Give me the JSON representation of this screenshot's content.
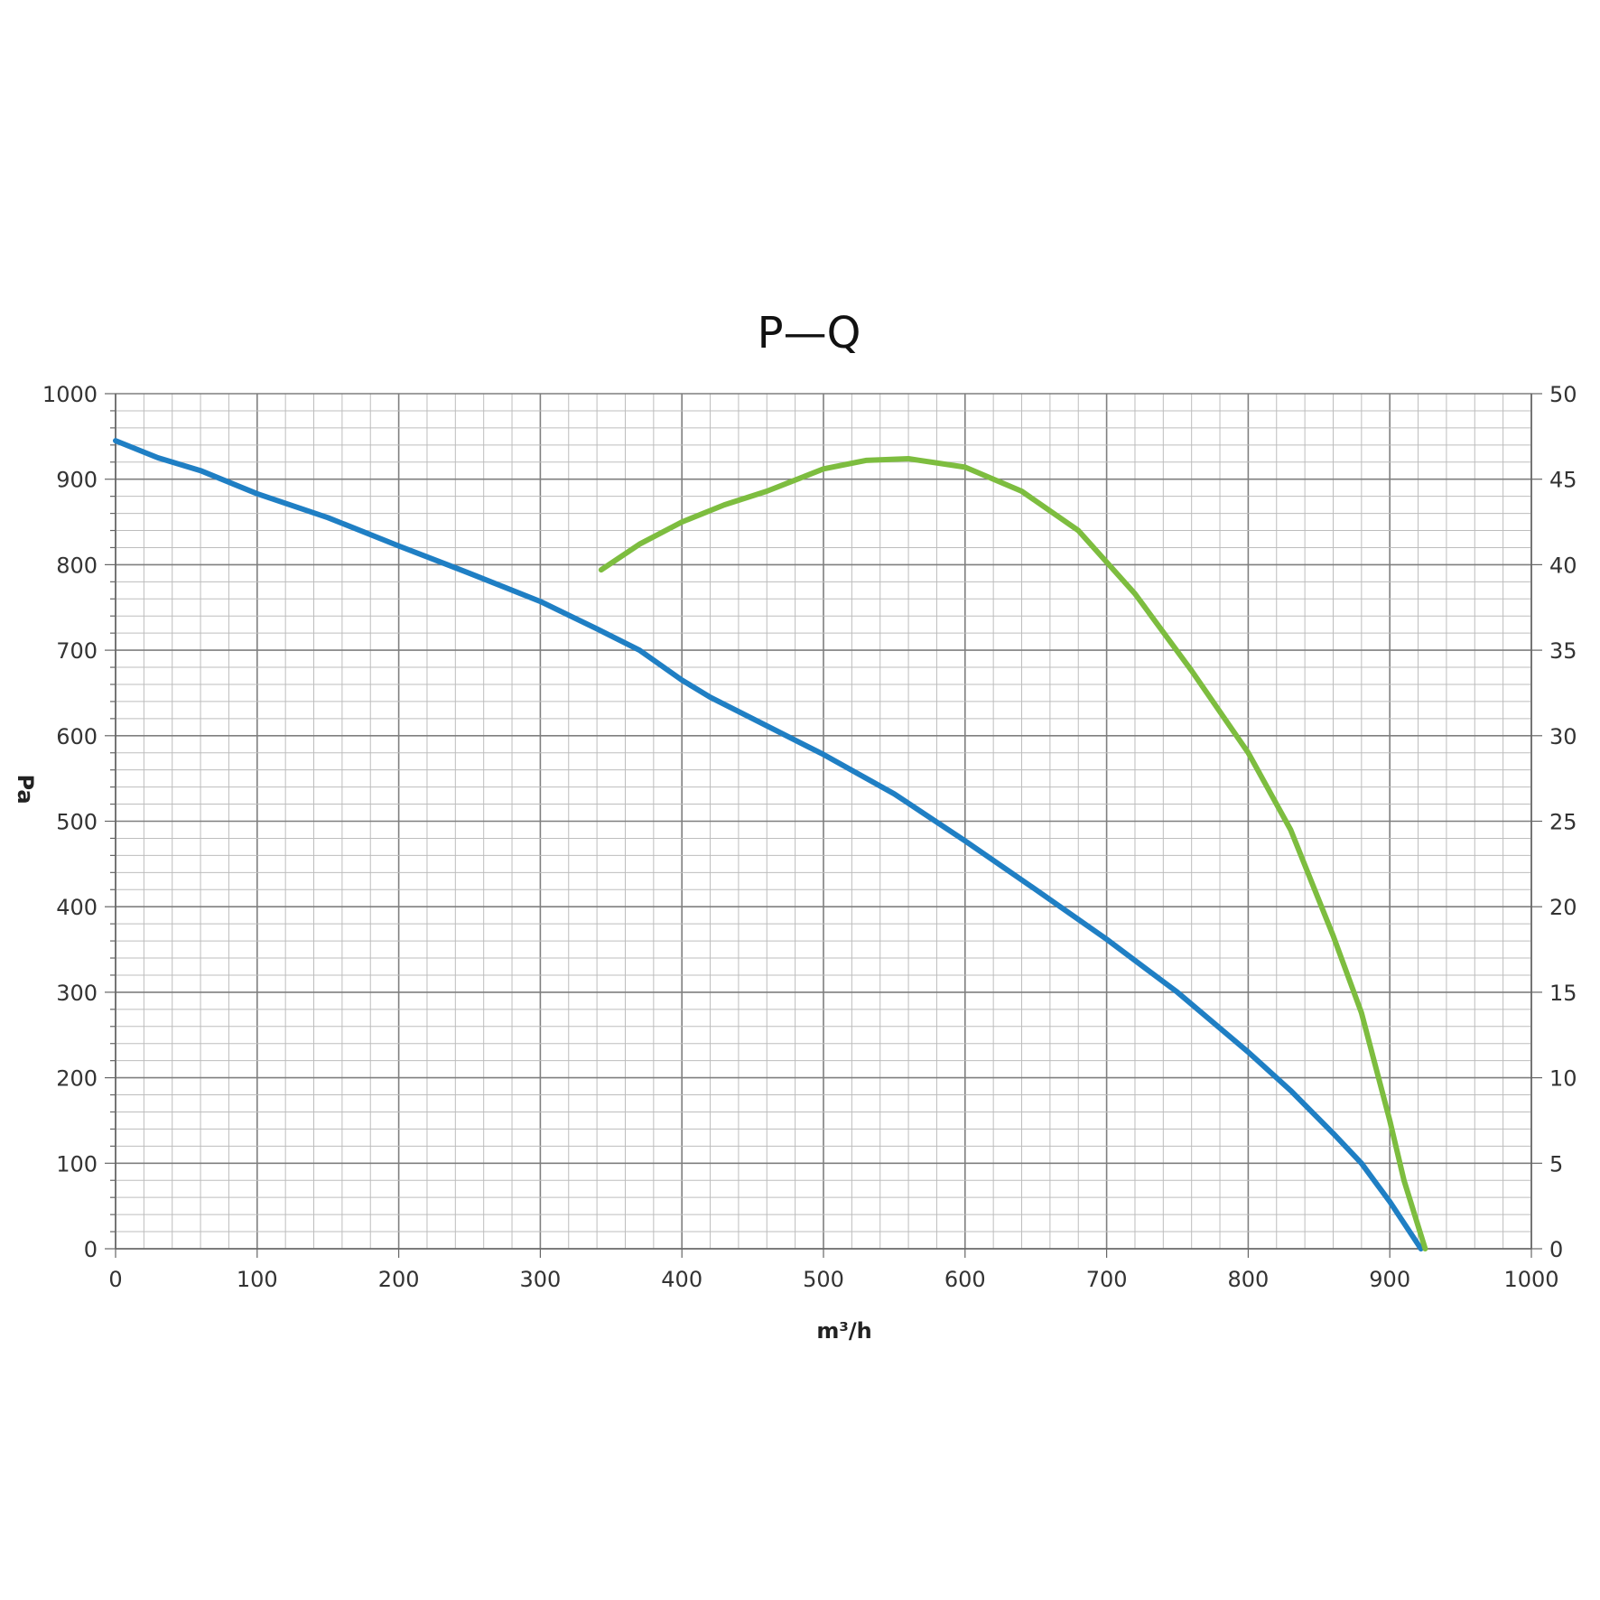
{
  "chart_data": {
    "type": "line",
    "title": "P—Q",
    "xlabel": "m³/h",
    "ylabel": "Pa",
    "y2label": "",
    "xlim": [
      0,
      1000
    ],
    "ylim": [
      0,
      1000
    ],
    "y2lim": [
      0,
      50
    ],
    "x_ticks": [
      "0",
      "100",
      "200",
      "300",
      "400",
      "500",
      "600",
      "700",
      "800",
      "900",
      "1000"
    ],
    "y_ticks": [
      "0",
      "100",
      "200",
      "300",
      "400",
      "500",
      "600",
      "700",
      "800",
      "900",
      "1000"
    ],
    "y2_ticks": [
      "0",
      "5",
      "10",
      "15",
      "20",
      "25",
      "30",
      "35",
      "40",
      "45",
      "50"
    ],
    "grid": true,
    "series": [
      {
        "axis": "left",
        "color": "#1f7fc4",
        "points": [
          [
            0,
            945
          ],
          [
            30,
            925
          ],
          [
            60,
            910
          ],
          [
            100,
            883
          ],
          [
            150,
            855
          ],
          [
            200,
            822
          ],
          [
            250,
            790
          ],
          [
            300,
            757
          ],
          [
            340,
            725
          ],
          [
            370,
            700
          ],
          [
            400,
            665
          ],
          [
            420,
            645
          ],
          [
            450,
            620
          ],
          [
            500,
            578
          ],
          [
            550,
            532
          ],
          [
            600,
            477
          ],
          [
            650,
            420
          ],
          [
            700,
            362
          ],
          [
            750,
            300
          ],
          [
            800,
            230
          ],
          [
            830,
            185
          ],
          [
            860,
            135
          ],
          [
            880,
            100
          ],
          [
            900,
            55
          ],
          [
            922,
            0
          ]
        ]
      },
      {
        "axis": "right",
        "color": "#7dbd3f",
        "points": [
          [
            343,
            39.7
          ],
          [
            370,
            41.2
          ],
          [
            400,
            42.5
          ],
          [
            430,
            43.5
          ],
          [
            460,
            44.3
          ],
          [
            500,
            45.6
          ],
          [
            530,
            46.1
          ],
          [
            560,
            46.2
          ],
          [
            600,
            45.7
          ],
          [
            640,
            44.3
          ],
          [
            680,
            42.0
          ],
          [
            720,
            38.3
          ],
          [
            760,
            33.8
          ],
          [
            800,
            29.0
          ],
          [
            830,
            24.5
          ],
          [
            860,
            18.3
          ],
          [
            880,
            13.8
          ],
          [
            900,
            7.5
          ],
          [
            910,
            4.0
          ],
          [
            925,
            0
          ]
        ]
      }
    ]
  }
}
